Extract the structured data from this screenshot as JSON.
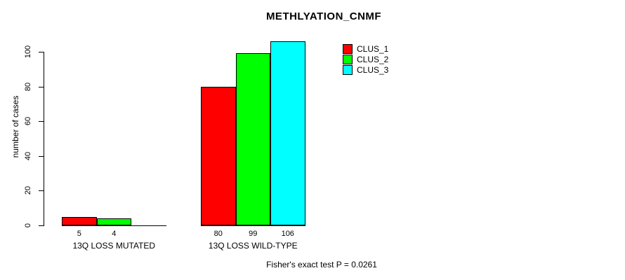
{
  "chart_data": {
    "type": "bar",
    "title": "METHLYATION_CNMF",
    "ylabel": "number of cases",
    "xlabel": "",
    "ylim": [
      0,
      100
    ],
    "yticks": [
      0,
      20,
      40,
      60,
      80,
      100
    ],
    "grid": false,
    "legend_position": "top-right",
    "categories": [
      "13Q LOSS MUTATED",
      "13Q LOSS WILD-TYPE"
    ],
    "series": [
      {
        "name": "CLUS_1",
        "color": "#ff0000",
        "values": [
          5,
          80
        ]
      },
      {
        "name": "CLUS_2",
        "color": "#00ff00",
        "values": [
          4,
          99
        ]
      },
      {
        "name": "CLUS_3",
        "color": "#00ffff",
        "values": [
          0,
          106
        ]
      }
    ],
    "bar_labels": [
      [
        "5",
        "4",
        ""
      ],
      [
        "80",
        "99",
        "106"
      ]
    ],
    "annotation": "Fisher's exact test P = 0.0261"
  }
}
